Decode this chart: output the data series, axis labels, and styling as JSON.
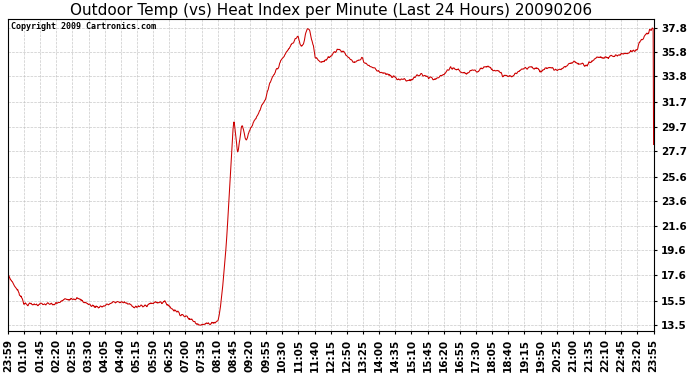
{
  "title": "Outdoor Temp (vs) Heat Index per Minute (Last 24 Hours) 20090206",
  "copyright_text": "Copyright 2009 Cartronics.com",
  "line_color": "#cc0000",
  "background_color": "#ffffff",
  "plot_bg_color": "#ffffff",
  "grid_color": "#bbbbbb",
  "yticks": [
    13.5,
    15.5,
    17.6,
    19.6,
    21.6,
    23.6,
    25.6,
    27.7,
    29.7,
    31.7,
    33.8,
    35.8,
    37.8
  ],
  "ylim": [
    13.0,
    38.5
  ],
  "title_fontsize": 11,
  "tick_fontsize": 7.5,
  "xtick_labels": [
    "23:59",
    "01:10",
    "01:45",
    "02:20",
    "02:55",
    "03:30",
    "04:05",
    "04:40",
    "05:15",
    "05:50",
    "06:25",
    "07:00",
    "07:35",
    "08:10",
    "08:45",
    "09:20",
    "09:55",
    "10:30",
    "11:05",
    "11:40",
    "12:15",
    "12:50",
    "13:25",
    "14:00",
    "14:35",
    "15:10",
    "15:45",
    "16:20",
    "16:55",
    "17:30",
    "18:05",
    "18:40",
    "19:15",
    "19:50",
    "20:25",
    "21:00",
    "21:35",
    "22:10",
    "22:45",
    "23:20",
    "23:55"
  ]
}
